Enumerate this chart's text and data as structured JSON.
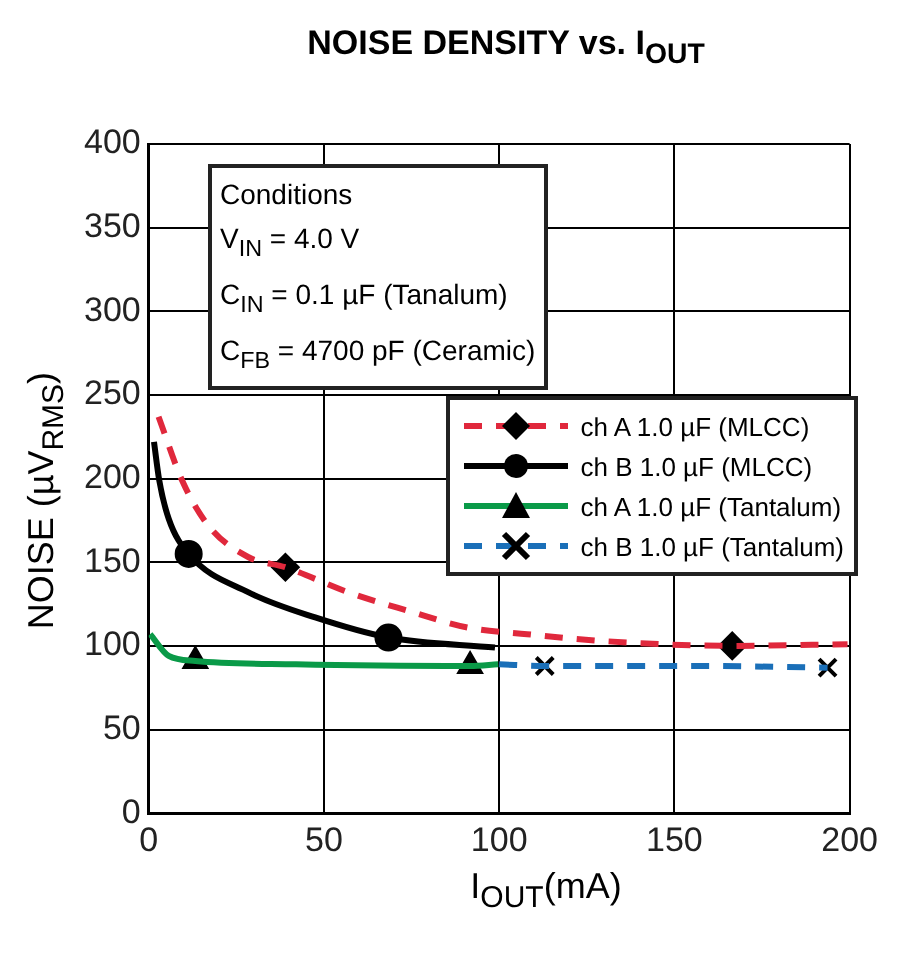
{
  "chart_data": {
    "type": "line",
    "title": "NOISE DENSITY vs. I$_{OUT}$",
    "xlabel": "I$_{OUT}$(mA)",
    "ylabel": "NOISE (µV$_{RMS}$)",
    "annotations": [
      "Conditions",
      "V$_{IN}$ = 4.0 V",
      "C$_{IN}$ = 0.1 µF (Tanalum)",
      "C$_{FB}$ = 4700 pF (Ceramic)"
    ],
    "xlim": [
      0,
      200
    ],
    "xticks": [
      0,
      50,
      100,
      150,
      200
    ],
    "ylim": [
      0,
      400
    ],
    "yticks": [
      0,
      50,
      100,
      150,
      200,
      250,
      300,
      350,
      400
    ],
    "grid": true,
    "legend": "right",
    "series": [
      {
        "name": "ch A 1.0 µF (MLCC)",
        "color": "#e0283c",
        "line_style": "dashed",
        "marker": "none",
        "x": [
          2.8,
          9.5,
          17,
          28.5,
          39,
          57,
          74,
          91,
          108,
          129,
          166.5,
          199.4
        ],
        "values": [
          237,
          199,
          172,
          153,
          147,
          132,
          121,
          111,
          107,
          103,
          100,
          101
        ]
      },
      {
        "name": "ch B 1.0 µF (MLCC)",
        "color": "#000000",
        "line_style": "solid",
        "marker": "none",
        "x": [
          1.5,
          3,
          5.7,
          11.4,
          28.5,
          47.5,
          68.4,
          98.8
        ],
        "values": [
          222,
          199,
          176,
          155,
          132,
          117,
          105,
          99
        ]
      },
      {
        "name": "ch A 1.0 µF (Tantalum)",
        "color": "#0a9a48",
        "line_style": "solid",
        "marker": "none",
        "x": [
          0.4,
          5.7,
          13.3,
          42,
          91.7,
          99.7
        ],
        "values": [
          107,
          94,
          91,
          89,
          88,
          89
        ]
      },
      {
        "name": "ch B 1.0 µF (Tantalum)",
        "color": "#1a6fb8",
        "line_style": "dashed",
        "marker": "none",
        "x": [
          100,
          113,
          156,
          193.7
        ],
        "values": [
          89,
          88,
          88,
          87
        ]
      },
      {
        "type": "scatter",
        "color": "#000000",
        "marker": "diamond",
        "x": [
          39,
          166.5
        ],
        "values": [
          147,
          100
        ]
      },
      {
        "type": "scatter",
        "color": "#000000",
        "marker": "circle",
        "x": [
          11.4,
          68.4
        ],
        "values": [
          155,
          105
        ]
      },
      {
        "type": "scatter",
        "color": "#000000",
        "marker": "triangle",
        "x": [
          13.3,
          91.7
        ],
        "values": [
          91,
          88
        ]
      },
      {
        "type": "scatter",
        "color": "#000000",
        "marker": "cross",
        "x": [
          113,
          193.7
        ],
        "values": [
          88,
          87
        ]
      }
    ]
  }
}
